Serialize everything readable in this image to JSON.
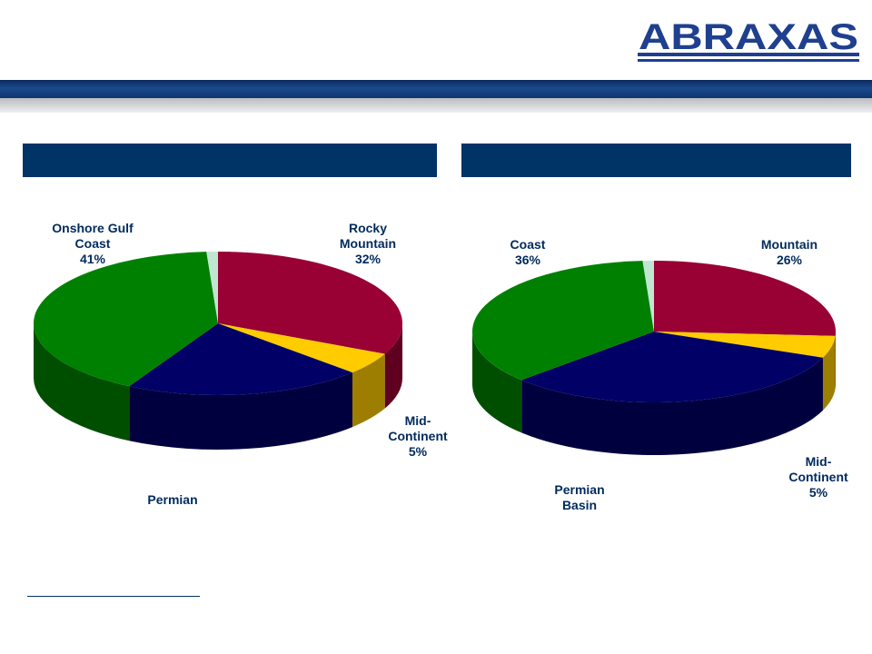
{
  "logo": {
    "text": "ABRAXAS"
  },
  "colors": {
    "header_bar": "#003366",
    "label_text": "#002a5c"
  },
  "chart_data": [
    {
      "type": "pie",
      "title": "",
      "slices": [
        {
          "label_lines": [
            "Rocky",
            "Mountain",
            "32%"
          ],
          "value": 32,
          "color": "#990033"
        },
        {
          "label_lines": [
            "Mid-",
            "Continent",
            "5%"
          ],
          "value": 5,
          "color": "#ffcc00"
        },
        {
          "label_lines": [
            "Permian"
          ],
          "value": 21,
          "color": "#000066"
        },
        {
          "label_lines": [
            "Onshore Gulf",
            "Coast",
            "41%"
          ],
          "value": 41,
          "color": "#008000"
        },
        {
          "label_lines": [],
          "value": 1,
          "color": "#bfe6d0"
        }
      ]
    },
    {
      "type": "pie",
      "title": "",
      "slices": [
        {
          "label_lines": [
            "Mountain",
            "26%"
          ],
          "value": 26,
          "color": "#990033"
        },
        {
          "label_lines": [
            "Mid-",
            "Continent",
            "5%"
          ],
          "value": 5,
          "color": "#ffcc00"
        },
        {
          "label_lines": [
            "Permian",
            "Basin"
          ],
          "value": 32,
          "color": "#000066"
        },
        {
          "label_lines": [
            "Coast",
            "36%"
          ],
          "value": 36,
          "color": "#008000"
        },
        {
          "label_lines": [],
          "value": 1,
          "color": "#bfe6d0"
        }
      ]
    }
  ]
}
